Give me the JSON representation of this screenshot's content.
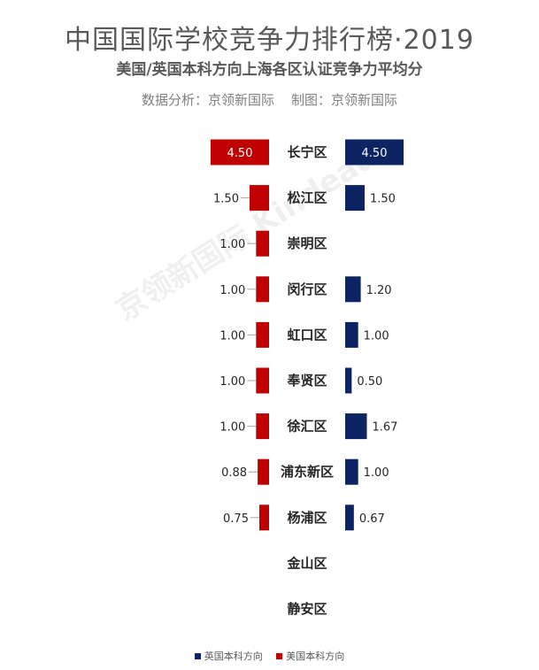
{
  "header": {
    "title": "中国国际学校竞争力排行榜·2019",
    "subtitle": "美国/英国本科方向上海各区认证竞争力平均分",
    "credit": "数据分析：京领新国际    制图：京领新国际",
    "watermark": "京领新国际 Kindead"
  },
  "chart_data": {
    "type": "bar",
    "orientation": "horizontal-butterfly",
    "categories": [
      "长宁区",
      "松江区",
      "崇明区",
      "闵行区",
      "虹口区",
      "奉贤区",
      "徐汇区",
      "浦东新区",
      "杨浦区",
      "金山区",
      "静安区"
    ],
    "series": [
      {
        "name": "美国本科方向",
        "side": "left",
        "color": "#c00000",
        "values": [
          4.5,
          1.5,
          1.0,
          1.0,
          1.0,
          1.0,
          1.0,
          0.88,
          0.75,
          null,
          null
        ],
        "labels": [
          "4.50",
          "1.50",
          "1.00",
          "1.00",
          "1.00",
          "1.00",
          "1.00",
          "0.88",
          "0.75",
          "",
          ""
        ]
      },
      {
        "name": "英国本科方向",
        "side": "right",
        "color": "#0c2461",
        "values": [
          4.5,
          1.5,
          null,
          1.2,
          1.0,
          0.5,
          1.67,
          1.0,
          0.67,
          null,
          null
        ],
        "labels": [
          "4.50",
          "1.50",
          "",
          "1.20",
          "1.00",
          "0.50",
          "1.67",
          "1.00",
          "0.67",
          "",
          ""
        ]
      }
    ],
    "legend": {
      "placement": "bottom",
      "items": [
        {
          "name": "英国本科方向",
          "color": "#0c2461"
        },
        {
          "name": "美国本科方向",
          "color": "#c00000"
        }
      ]
    },
    "grid": false
  }
}
